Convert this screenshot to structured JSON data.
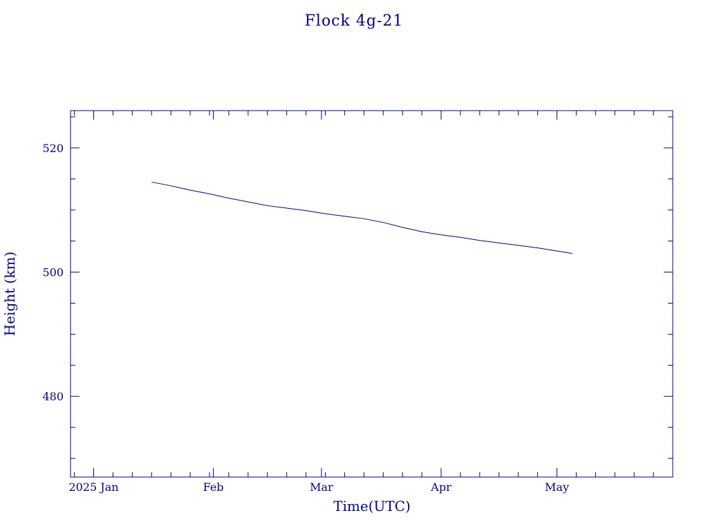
{
  "colors": {
    "ink": "#00008b",
    "background": "#ffffff"
  },
  "chart_data": {
    "type": "line",
    "title": "Flock 4g-21",
    "xlabel": "Time(UTC)",
    "ylabel": "Height (km)",
    "x_axis": "date",
    "xlim": [
      "2024-12-26",
      "2025-05-31"
    ],
    "ylim": [
      467,
      526
    ],
    "grid": false,
    "x_ticks": [
      {
        "date": "2025-01-01",
        "label": "2025 Jan"
      },
      {
        "date": "2025-02-01",
        "label": "Feb"
      },
      {
        "date": "2025-03-01",
        "label": "Mar"
      },
      {
        "date": "2025-04-01",
        "label": "Apr"
      },
      {
        "date": "2025-05-01",
        "label": "May"
      }
    ],
    "x_minor_tick_step_days": 5,
    "y_major_ticks": [
      480,
      500,
      520
    ],
    "y_minor_tick_step": 5,
    "series": [
      {
        "x": [
          "2025-01-16",
          "2025-01-21",
          "2025-01-26",
          "2025-01-31",
          "2025-02-05",
          "2025-02-10",
          "2025-02-15",
          "2025-02-20",
          "2025-02-25",
          "2025-03-02",
          "2025-03-07",
          "2025-03-12",
          "2025-03-17",
          "2025-03-22",
          "2025-03-27",
          "2025-04-01",
          "2025-04-06",
          "2025-04-11",
          "2025-04-16",
          "2025-04-21",
          "2025-04-26",
          "2025-05-01",
          "2025-05-05"
        ],
        "y": [
          514.5,
          513.9,
          513.2,
          512.6,
          511.9,
          511.3,
          510.7,
          510.3,
          509.9,
          509.4,
          509.0,
          508.6,
          508.0,
          507.2,
          506.5,
          506.0,
          505.6,
          505.1,
          504.7,
          504.3,
          503.9,
          503.4,
          503.0
        ]
      }
    ]
  }
}
